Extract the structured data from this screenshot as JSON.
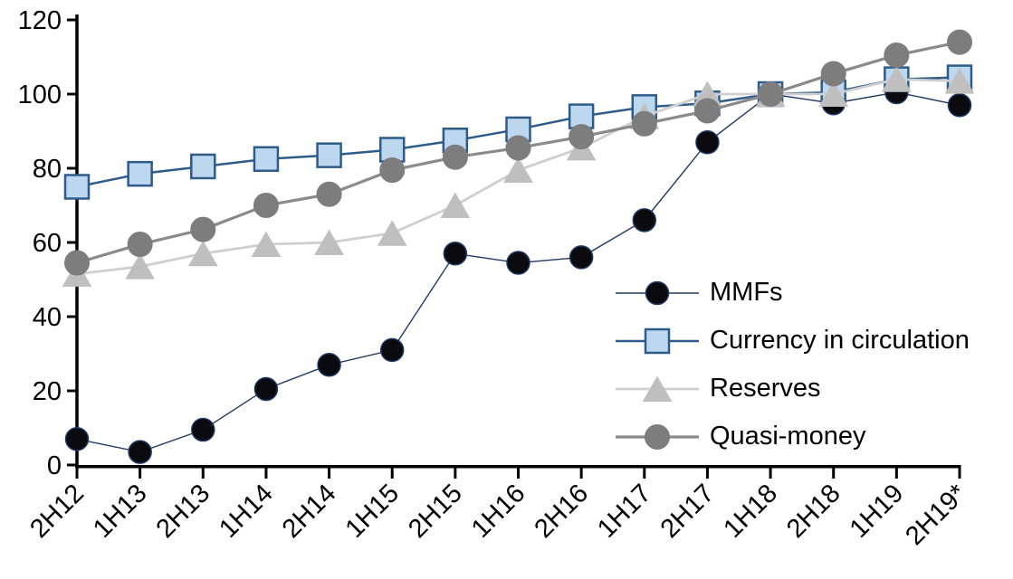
{
  "chart_data": {
    "type": "line",
    "title": "",
    "xlabel": "",
    "ylabel": "",
    "background": "#FFFFFF",
    "axis_color": "#000000",
    "text_color": "#000000",
    "grid": false,
    "legend_position": "middle-right",
    "ylim": [
      0,
      120
    ],
    "yticks": [
      0,
      20,
      40,
      60,
      80,
      100,
      120
    ],
    "categories": [
      "2H12",
      "1H13",
      "2H13",
      "1H14",
      "2H14",
      "1H15",
      "2H15",
      "1H16",
      "2H16",
      "1H17",
      "2H17",
      "1H18",
      "2H18",
      "1H19",
      "2H19*"
    ],
    "series": [
      {
        "name": "MMFs",
        "marker": "circle",
        "marker_size": 25,
        "marker_fill": "#0a0a0f",
        "marker_stroke": "#1F3864",
        "marker_stroke_width": 1.5,
        "line_color": "#1F3864",
        "line_width": 1.4,
        "values": [
          7,
          3.5,
          9.5,
          20.5,
          27,
          31,
          57,
          54.5,
          56,
          66,
          87,
          100,
          97.5,
          100.5,
          97
        ]
      },
      {
        "name": "Currency in circulation",
        "marker": "square",
        "marker_size": 26,
        "marker_fill": "#BDD7EE",
        "marker_stroke": "#2E5C8A",
        "marker_stroke_width": 2.5,
        "line_color": "#2E5C8A",
        "line_width": 2.5,
        "values": [
          75,
          78.5,
          80.5,
          82.5,
          83.5,
          85,
          87.5,
          90.5,
          94,
          96.5,
          97.5,
          100,
          100.5,
          104,
          104.5
        ]
      },
      {
        "name": "Reserves",
        "marker": "triangle",
        "marker_size": 31,
        "marker_fill": "#BFBFBF",
        "marker_stroke": "#BFBFBF",
        "marker_stroke_width": 1,
        "line_color": "#CFCFCF",
        "line_width": 2.8,
        "values": [
          51.5,
          53.5,
          57,
          59.5,
          60,
          62.5,
          70,
          79.5,
          85.5,
          94,
          100,
          100,
          100,
          104,
          103.5
        ]
      },
      {
        "name": "Quasi-money",
        "marker": "circle",
        "marker_size": 27,
        "marker_fill": "#7D7D7D",
        "marker_stroke": "#7D7D7D",
        "marker_stroke_width": 1,
        "line_color": "#8A8A8A",
        "line_width": 3.2,
        "values": [
          54.5,
          59.5,
          63.5,
          70,
          73,
          79.5,
          83,
          85.5,
          88.5,
          92,
          95.5,
          100,
          105.5,
          110.5,
          114
        ]
      }
    ]
  }
}
